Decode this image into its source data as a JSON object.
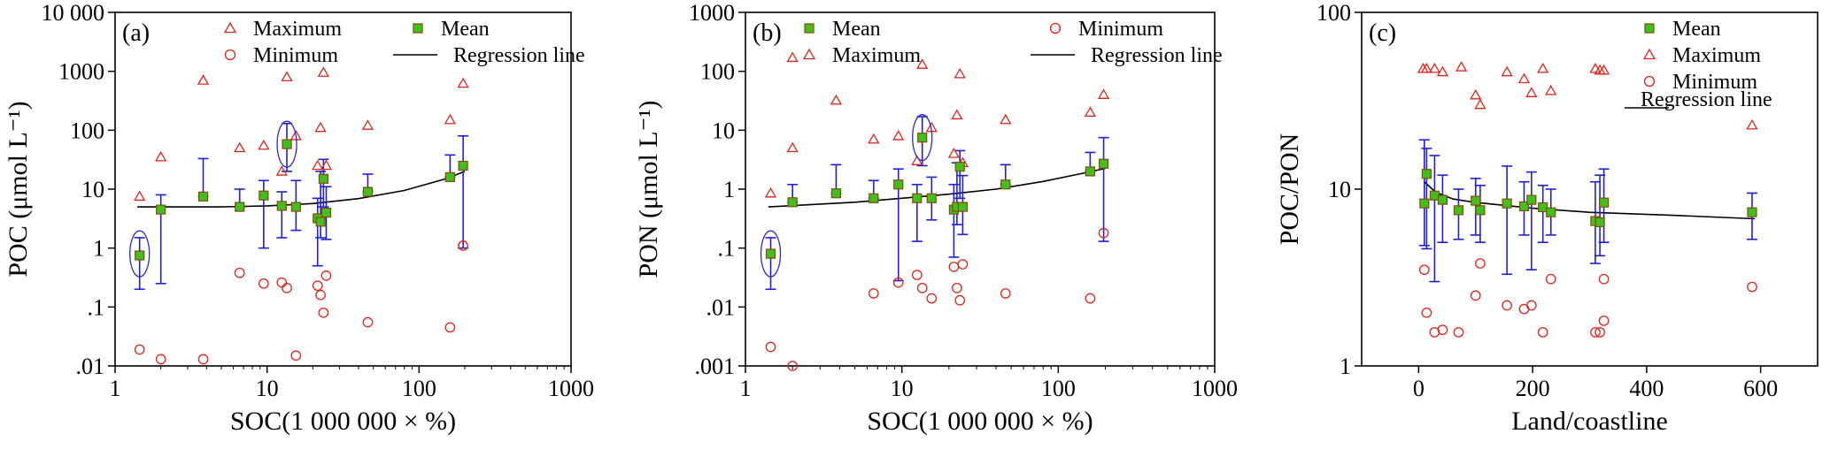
{
  "chart_data": [
    {
      "id": "a",
      "type": "scatter",
      "panel_label": "(a)",
      "xlabel": "SOC(1 000 000 × %)",
      "ylabel": "POC (μmol L⁻¹)",
      "xscale": "log",
      "yscale": "log",
      "xlim": [
        1,
        1000
      ],
      "ylim": [
        0.01,
        10000
      ],
      "xticks": [
        {
          "v": 1,
          "label": "1"
        },
        {
          "v": 10,
          "label": "10"
        },
        {
          "v": 100,
          "label": "100"
        },
        {
          "v": 1000,
          "label": "1000"
        }
      ],
      "yticks": [
        {
          "v": 0.01,
          "label": ".01"
        },
        {
          "v": 0.1,
          "label": ".1"
        },
        {
          "v": 1,
          "label": "1"
        },
        {
          "v": 10,
          "label": "10"
        },
        {
          "v": 100,
          "label": "100"
        },
        {
          "v": 1000,
          "label": "1000"
        },
        {
          "v": 10000,
          "label": "10 000"
        }
      ],
      "legend": {
        "maximum": "Maximum",
        "minimum": "Minimum",
        "mean": "Mean",
        "regression": "Regression line"
      },
      "legend_layout": "top",
      "mean": [
        {
          "x": 1.45,
          "y": 0.75,
          "lo": 0.2,
          "hi": 1.5
        },
        {
          "x": 2.0,
          "y": 4.5,
          "lo": 0.25,
          "hi": 8
        },
        {
          "x": 3.8,
          "y": 7.5,
          "lo": 7.5,
          "hi": 33
        },
        {
          "x": 6.6,
          "y": 5.0,
          "lo": 5,
          "hi": 10
        },
        {
          "x": 9.5,
          "y": 7.8,
          "lo": 1.0,
          "hi": 14
        },
        {
          "x": 12.5,
          "y": 5.2,
          "lo": 1.5,
          "hi": 9
        },
        {
          "x": 13.5,
          "y": 58,
          "lo": 20,
          "hi": 130
        },
        {
          "x": 15.5,
          "y": 5.0,
          "lo": 2,
          "hi": 14
        },
        {
          "x": 21.5,
          "y": 3.2,
          "lo": 0.5,
          "hi": 7
        },
        {
          "x": 22.5,
          "y": 2.8,
          "lo": 1.5,
          "hi": 20
        },
        {
          "x": 23.5,
          "y": 15,
          "lo": 5,
          "hi": 32
        },
        {
          "x": 24.5,
          "y": 4.0,
          "lo": 1.4,
          "hi": 11
        },
        {
          "x": 46,
          "y": 9,
          "lo": 9,
          "hi": 18
        },
        {
          "x": 160,
          "y": 16,
          "lo": 16,
          "hi": 38
        },
        {
          "x": 195,
          "y": 25,
          "lo": 1,
          "hi": 80
        }
      ],
      "maximum": [
        {
          "x": 1.45,
          "y": 7.5
        },
        {
          "x": 2.0,
          "y": 35
        },
        {
          "x": 3.8,
          "y": 700
        },
        {
          "x": 6.6,
          "y": 50
        },
        {
          "x": 9.5,
          "y": 55
        },
        {
          "x": 12.5,
          "y": 20
        },
        {
          "x": 13.5,
          "y": 800
        },
        {
          "x": 15.5,
          "y": 80
        },
        {
          "x": 21.5,
          "y": 25
        },
        {
          "x": 22.5,
          "y": 110
        },
        {
          "x": 23.5,
          "y": 950
        },
        {
          "x": 24.5,
          "y": 25
        },
        {
          "x": 46,
          "y": 120
        },
        {
          "x": 160,
          "y": 150
        },
        {
          "x": 195,
          "y": 620
        }
      ],
      "minimum": [
        {
          "x": 1.45,
          "y": 0.019
        },
        {
          "x": 2.0,
          "y": 0.013
        },
        {
          "x": 3.8,
          "y": 0.013
        },
        {
          "x": 6.6,
          "y": 0.38
        },
        {
          "x": 9.5,
          "y": 0.25
        },
        {
          "x": 12.5,
          "y": 0.26
        },
        {
          "x": 13.5,
          "y": 0.21
        },
        {
          "x": 15.5,
          "y": 0.015
        },
        {
          "x": 21.5,
          "y": 0.23
        },
        {
          "x": 22.5,
          "y": 0.16
        },
        {
          "x": 23.5,
          "y": 0.08
        },
        {
          "x": 24.5,
          "y": 0.34
        },
        {
          "x": 46,
          "y": 0.055
        },
        {
          "x": 160,
          "y": 0.045
        },
        {
          "x": 195,
          "y": 1.1
        }
      ],
      "regression": [
        {
          "x": 1.4,
          "y": 5.0
        },
        {
          "x": 5,
          "y": 5.0
        },
        {
          "x": 10,
          "y": 5.2
        },
        {
          "x": 20,
          "y": 5.7
        },
        {
          "x": 40,
          "y": 6.9
        },
        {
          "x": 80,
          "y": 9.5
        },
        {
          "x": 150,
          "y": 15
        },
        {
          "x": 200,
          "y": 20
        }
      ],
      "highlight_ellipses": [
        {
          "x": 1.45,
          "y": 0.8
        },
        {
          "x": 13.5,
          "y": 58
        }
      ]
    },
    {
      "id": "b",
      "type": "scatter",
      "panel_label": "(b)",
      "xlabel": "SOC(1 000 000 × %)",
      "ylabel": "PON (μmol L⁻¹)",
      "xscale": "log",
      "yscale": "log",
      "xlim": [
        1,
        1000
      ],
      "ylim": [
        0.001,
        1000
      ],
      "xticks": [
        {
          "v": 1,
          "label": "1"
        },
        {
          "v": 10,
          "label": "10"
        },
        {
          "v": 100,
          "label": "100"
        },
        {
          "v": 1000,
          "label": "1000"
        }
      ],
      "yticks": [
        {
          "v": 0.001,
          "label": ".001"
        },
        {
          "v": 0.01,
          "label": ".01"
        },
        {
          "v": 0.1,
          "label": ".1"
        },
        {
          "v": 1,
          "label": "1"
        },
        {
          "v": 10,
          "label": "10"
        },
        {
          "v": 100,
          "label": "100"
        },
        {
          "v": 1000,
          "label": "1000"
        }
      ],
      "legend": {
        "maximum": "Maximum",
        "minimum": "Minimum",
        "mean": "Mean",
        "regression": "Regression line"
      },
      "legend_layout": "top-b",
      "mean": [
        {
          "x": 1.45,
          "y": 0.08,
          "lo": 0.02,
          "hi": 0.15
        },
        {
          "x": 2.0,
          "y": 0.6,
          "lo": 0.6,
          "hi": 1.2
        },
        {
          "x": 3.8,
          "y": 0.85,
          "lo": 0.85,
          "hi": 2.6
        },
        {
          "x": 6.6,
          "y": 0.7,
          "lo": 0.7,
          "hi": 1.4
        },
        {
          "x": 9.5,
          "y": 1.2,
          "lo": 0.028,
          "hi": 2.2
        },
        {
          "x": 12.5,
          "y": 0.7,
          "lo": 0.13,
          "hi": 1.2
        },
        {
          "x": 13.5,
          "y": 7.5,
          "lo": 2.5,
          "hi": 17
        },
        {
          "x": 15.5,
          "y": 0.7,
          "lo": 0.3,
          "hi": 1.6
        },
        {
          "x": 21.5,
          "y": 0.45,
          "lo": 0.07,
          "hi": 1.2
        },
        {
          "x": 22.5,
          "y": 0.5,
          "lo": 0.25,
          "hi": 2.8
        },
        {
          "x": 23.5,
          "y": 2.4,
          "lo": 0.7,
          "hi": 4.5
        },
        {
          "x": 24.5,
          "y": 0.5,
          "lo": 0.17,
          "hi": 1.7
        },
        {
          "x": 46,
          "y": 1.2,
          "lo": 1.2,
          "hi": 2.6
        },
        {
          "x": 160,
          "y": 2.0,
          "lo": 2.0,
          "hi": 4.2
        },
        {
          "x": 195,
          "y": 2.7,
          "lo": 0.13,
          "hi": 7.5
        }
      ],
      "maximum": [
        {
          "x": 1.45,
          "y": 0.85
        },
        {
          "x": 2.0,
          "y": 5
        },
        {
          "x": 2.0,
          "y": 170
        },
        {
          "x": 3.8,
          "y": 32
        },
        {
          "x": 6.6,
          "y": 7
        },
        {
          "x": 9.5,
          "y": 8
        },
        {
          "x": 12.5,
          "y": 3
        },
        {
          "x": 13.5,
          "y": 130
        },
        {
          "x": 15.5,
          "y": 11
        },
        {
          "x": 21.5,
          "y": 4
        },
        {
          "x": 22.5,
          "y": 18
        },
        {
          "x": 23.5,
          "y": 90
        },
        {
          "x": 24.5,
          "y": 2.8
        },
        {
          "x": 46,
          "y": 15
        },
        {
          "x": 160,
          "y": 20
        },
        {
          "x": 195,
          "y": 40
        }
      ],
      "minimum": [
        {
          "x": 1.45,
          "y": 0.0021
        },
        {
          "x": 2.0,
          "y": 0.001
        },
        {
          "x": 6.6,
          "y": 0.017
        },
        {
          "x": 9.5,
          "y": 0.026
        },
        {
          "x": 12.5,
          "y": 0.035
        },
        {
          "x": 13.5,
          "y": 0.021
        },
        {
          "x": 15.5,
          "y": 0.014
        },
        {
          "x": 21.5,
          "y": 0.048
        },
        {
          "x": 22.5,
          "y": 0.021
        },
        {
          "x": 23.5,
          "y": 0.013
        },
        {
          "x": 24.5,
          "y": 0.053
        },
        {
          "x": 46,
          "y": 0.017
        },
        {
          "x": 160,
          "y": 0.014
        },
        {
          "x": 195,
          "y": 0.18
        }
      ],
      "regression": [
        {
          "x": 1.4,
          "y": 0.5
        },
        {
          "x": 5,
          "y": 0.6
        },
        {
          "x": 10,
          "y": 0.7
        },
        {
          "x": 20,
          "y": 0.82
        },
        {
          "x": 40,
          "y": 1.0
        },
        {
          "x": 80,
          "y": 1.35
        },
        {
          "x": 150,
          "y": 1.9
        },
        {
          "x": 200,
          "y": 2.25
        }
      ],
      "highlight_ellipses": [
        {
          "x": 1.45,
          "y": 0.08
        },
        {
          "x": 13.5,
          "y": 7.5
        }
      ]
    },
    {
      "id": "c",
      "type": "scatter",
      "panel_label": "(c)",
      "xlabel": "Land/coastline",
      "ylabel": "POC/PON",
      "xscale": "linear",
      "yscale": "log",
      "xlim": [
        -100,
        700
      ],
      "ylim": [
        1,
        100
      ],
      "xticks": [
        {
          "v": 0,
          "label": "0"
        },
        {
          "v": 200,
          "label": "200"
        },
        {
          "v": 400,
          "label": "400"
        },
        {
          "v": 600,
          "label": "600"
        }
      ],
      "yticks": [
        {
          "v": 1,
          "label": "1"
        },
        {
          "v": 10,
          "label": "10"
        },
        {
          "v": 100,
          "label": "100"
        }
      ],
      "legend": {
        "maximum": "Maximum",
        "minimum": "Minimum",
        "mean": "Mean",
        "regression": "Regression line"
      },
      "legend_layout": "right",
      "mean": [
        {
          "x": 10,
          "y": 8.3,
          "lo": 4.8,
          "hi": 19
        },
        {
          "x": 14,
          "y": 12.2,
          "lo": 4.6,
          "hi": 17
        },
        {
          "x": 28,
          "y": 9.2,
          "lo": 3.0,
          "hi": 15.5
        },
        {
          "x": 42,
          "y": 8.7,
          "lo": 5.0,
          "hi": 12
        },
        {
          "x": 70,
          "y": 7.6,
          "lo": 5.2,
          "hi": 10
        },
        {
          "x": 100,
          "y": 8.6,
          "lo": 5.5,
          "hi": 11.5
        },
        {
          "x": 108,
          "y": 7.6,
          "lo": 5.0,
          "hi": 10.5
        },
        {
          "x": 155,
          "y": 8.3,
          "lo": 3.3,
          "hi": 13.5
        },
        {
          "x": 185,
          "y": 8.0,
          "lo": 5.5,
          "hi": 11
        },
        {
          "x": 198,
          "y": 8.7,
          "lo": 3.5,
          "hi": 12.5
        },
        {
          "x": 218,
          "y": 7.9,
          "lo": 5.0,
          "hi": 10.5
        },
        {
          "x": 232,
          "y": 7.4,
          "lo": 5.5,
          "hi": 10
        },
        {
          "x": 310,
          "y": 6.6,
          "lo": 3.8,
          "hi": 11
        },
        {
          "x": 318,
          "y": 6.5,
          "lo": 4.2,
          "hi": 12
        },
        {
          "x": 325,
          "y": 8.4,
          "lo": 5.0,
          "hi": 13
        },
        {
          "x": 585,
          "y": 7.4,
          "lo": 5.2,
          "hi": 9.5
        }
      ],
      "maximum": [
        {
          "x": 8,
          "y": 48
        },
        {
          "x": 14,
          "y": 48
        },
        {
          "x": 28,
          "y": 48
        },
        {
          "x": 42,
          "y": 46
        },
        {
          "x": 75,
          "y": 49
        },
        {
          "x": 100,
          "y": 34
        },
        {
          "x": 108,
          "y": 30
        },
        {
          "x": 155,
          "y": 46
        },
        {
          "x": 185,
          "y": 42
        },
        {
          "x": 198,
          "y": 35
        },
        {
          "x": 218,
          "y": 48
        },
        {
          "x": 232,
          "y": 36
        },
        {
          "x": 310,
          "y": 48
        },
        {
          "x": 318,
          "y": 47
        },
        {
          "x": 325,
          "y": 47
        },
        {
          "x": 585,
          "y": 23
        }
      ],
      "minimum": [
        {
          "x": 10,
          "y": 3.5
        },
        {
          "x": 14,
          "y": 2.0
        },
        {
          "x": 28,
          "y": 1.55
        },
        {
          "x": 42,
          "y": 1.6
        },
        {
          "x": 70,
          "y": 1.55
        },
        {
          "x": 100,
          "y": 2.5
        },
        {
          "x": 108,
          "y": 3.8
        },
        {
          "x": 155,
          "y": 2.2
        },
        {
          "x": 185,
          "y": 2.1
        },
        {
          "x": 198,
          "y": 2.2
        },
        {
          "x": 218,
          "y": 1.55
        },
        {
          "x": 232,
          "y": 3.1
        },
        {
          "x": 310,
          "y": 1.55
        },
        {
          "x": 318,
          "y": 1.55
        },
        {
          "x": 325,
          "y": 3.1
        },
        {
          "x": 325,
          "y": 1.8
        },
        {
          "x": 585,
          "y": 2.8
        }
      ],
      "regression": [
        {
          "x": 10,
          "y": 11.0
        },
        {
          "x": 30,
          "y": 9.6
        },
        {
          "x": 60,
          "y": 8.8
        },
        {
          "x": 100,
          "y": 8.4
        },
        {
          "x": 200,
          "y": 7.8
        },
        {
          "x": 300,
          "y": 7.4
        },
        {
          "x": 450,
          "y": 7.1
        },
        {
          "x": 590,
          "y": 6.8
        }
      ],
      "highlight_ellipses": []
    }
  ],
  "colors": {
    "axis": "#000000",
    "error_bar": "#1f1fd6",
    "mean_fill": "#3fc01f",
    "mean_stroke": "#8a4a00",
    "max_min_marker": "#e0241a",
    "regression": "#000000",
    "highlight_ellipse": "#2a2ad0"
  }
}
